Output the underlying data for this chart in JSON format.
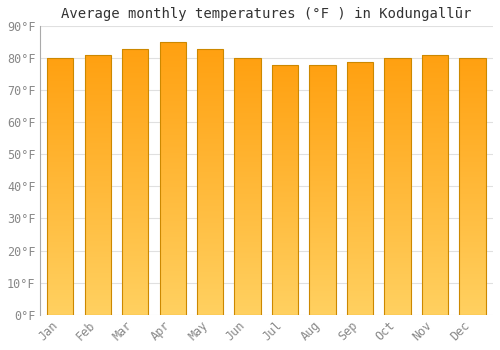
{
  "title": "Average monthly temperatures (°F ) in Kodungallūr",
  "months": [
    "Jan",
    "Feb",
    "Mar",
    "Apr",
    "May",
    "Jun",
    "Jul",
    "Aug",
    "Sep",
    "Oct",
    "Nov",
    "Dec"
  ],
  "values": [
    80,
    81,
    83,
    85,
    83,
    80,
    78,
    78,
    79,
    80,
    81,
    80
  ],
  "bar_color_top": "#FFA010",
  "bar_color_bottom": "#FFD060",
  "bar_edge_color": "#CC8800",
  "background_color": "#FFFFFF",
  "grid_color": "#E0E0E0",
  "text_color": "#888888",
  "title_color": "#333333",
  "ylim": [
    0,
    90
  ],
  "yticks": [
    0,
    10,
    20,
    30,
    40,
    50,
    60,
    70,
    80,
    90
  ],
  "title_fontsize": 10,
  "tick_fontsize": 8.5,
  "font_family": "monospace",
  "bar_width": 0.7,
  "figsize": [
    5.0,
    3.5
  ],
  "dpi": 100
}
